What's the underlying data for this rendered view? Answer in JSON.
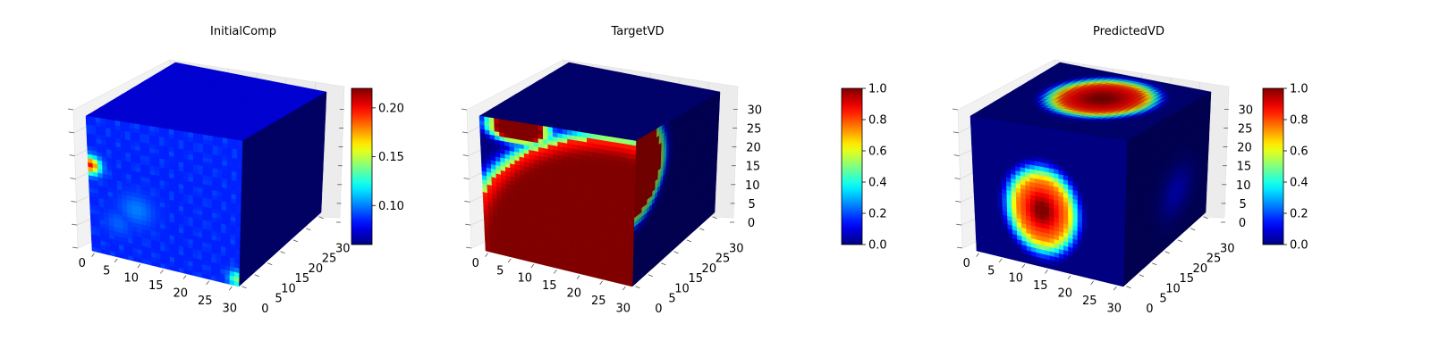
{
  "figure": {
    "panels": [
      {
        "title": "InitialComp"
      },
      {
        "title": "TargetVD"
      },
      {
        "title": "PredictedVD"
      }
    ]
  },
  "chart_data": [
    {
      "type": "heatmap",
      "subtype": "3d-voxel-cube",
      "title": "InitialComp",
      "grid": true,
      "colormap": "jet",
      "x_ticks": [
        "0",
        "5",
        "10",
        "15",
        "20",
        "25",
        "30"
      ],
      "y_ticks": [
        "0",
        "5",
        "10",
        "15",
        "20",
        "25",
        "30"
      ],
      "z_ticks": [],
      "xlim": [
        0,
        32
      ],
      "ylim": [
        0,
        32
      ],
      "zlim": [
        0,
        32
      ],
      "colorbar": {
        "min": 0.06,
        "max": 0.22,
        "ticks": [
          "0.10",
          "0.15",
          "0.20"
        ]
      },
      "face_values": {
        "front_background": 0.085,
        "top_background": 0.08,
        "side_background": 0.065,
        "front_hotspots": [
          {
            "u": 0.5,
            "v": 20.5,
            "value": 0.2,
            "radius": 1.4
          },
          {
            "u": 31.5,
            "v": 1.5,
            "value": 0.14,
            "radius": 1.2
          },
          {
            "u": 10.0,
            "v": 12.0,
            "value": 0.1,
            "radius": 2.5
          },
          {
            "u": 6.0,
            "v": 8.0,
            "value": 0.095,
            "radius": 2.0
          }
        ]
      }
    },
    {
      "type": "heatmap",
      "subtype": "3d-voxel-cube",
      "title": "TargetVD",
      "grid": true,
      "colormap": "jet",
      "x_ticks": [
        "0",
        "5",
        "10",
        "15",
        "20",
        "25",
        "30"
      ],
      "y_ticks": [
        "0",
        "5",
        "10",
        "15",
        "20",
        "25",
        "30"
      ],
      "z_ticks": [
        "0",
        "5",
        "10",
        "15",
        "20",
        "25",
        "30"
      ],
      "xlim": [
        0,
        32
      ],
      "ylim": [
        0,
        32
      ],
      "zlim": [
        0,
        32
      ],
      "colorbar": {
        "min": 0.0,
        "max": 1.0,
        "ticks": [
          "0.0",
          "0.2",
          "0.4",
          "0.6",
          "0.8",
          "1.0"
        ]
      },
      "face_values": {
        "front_region": {
          "center_u": 28.0,
          "center_v": 0.0,
          "radius": 31.0,
          "inside": 1.0,
          "outside": 0.0,
          "edge_width": 1.6
        },
        "front_blob": {
          "u": 8.0,
          "v": 30.5,
          "ru": 5.5,
          "rv": 3.0,
          "value": 1.0,
          "edge_width": 1.5
        },
        "side_region": {
          "center_u": 0.0,
          "center_v": 7.0,
          "radius": 10.0,
          "inside": 1.0,
          "outside": 0.0,
          "edge_width": 1.6
        },
        "top_background": 0.0,
        "side_background": 0.0
      }
    },
    {
      "type": "heatmap",
      "subtype": "3d-voxel-cube",
      "title": "PredictedVD",
      "grid": true,
      "colormap": "jet",
      "x_ticks": [
        "0",
        "5",
        "10",
        "15",
        "20",
        "25",
        "30"
      ],
      "y_ticks": [
        "0",
        "5",
        "10",
        "15",
        "20",
        "25",
        "30"
      ],
      "z_ticks": [
        "0",
        "5",
        "10",
        "15",
        "20",
        "25",
        "30"
      ],
      "xlim": [
        0,
        32
      ],
      "ylim": [
        0,
        32
      ],
      "zlim": [
        0,
        32
      ],
      "colorbar": {
        "min": 0.0,
        "max": 1.0,
        "ticks": [
          "0.0",
          "0.2",
          "0.4",
          "0.6",
          "0.8",
          "1.0"
        ]
      },
      "face_values": {
        "front_blob": {
          "u": 14.5,
          "v": 13.0,
          "ru": 8.5,
          "rv": 11.0,
          "peak": 1.0,
          "inner": 0.45
        },
        "top_ring": {
          "u": 16.5,
          "v": 19.0,
          "ru": 11.0,
          "rv": 11.5,
          "peak": 0.95
        },
        "side_blob": {
          "u": 20.0,
          "v": 20.0,
          "ru": 7.0,
          "rv": 7.0,
          "peak": 0.12
        },
        "top_background": 0.0,
        "side_background": 0.0,
        "front_background": 0.0
      }
    }
  ]
}
